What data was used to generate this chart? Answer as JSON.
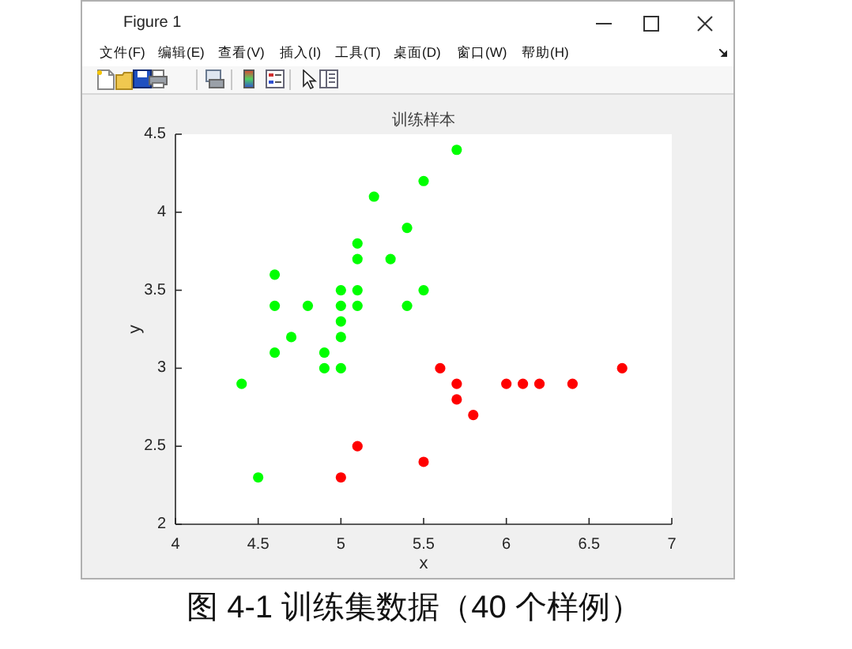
{
  "chart_data": {
    "type": "scatter",
    "title": "训练样本",
    "xlabel": "x",
    "ylabel": "y",
    "annotations": [
      "Figure 1",
      "文件(F)",
      "编辑(E)",
      "查看(V)",
      "插入(I)",
      "工具(T)",
      "桌面(D)",
      "窗口(W)",
      "帮助(H)",
      "图 4-1 训练集数据（40 个样例）"
    ],
    "xlim": [
      4,
      7
    ],
    "xticks": [
      4,
      4.5,
      5,
      5.5,
      6,
      6.5,
      7
    ],
    "ylim": [
      2,
      4.5
    ],
    "yticks": [
      2,
      2.5,
      3,
      3.5,
      4,
      4.5
    ],
    "marker": "circle",
    "series": [
      {
        "color": "#00ff00",
        "x": [
          4.4,
          4.5,
          4.6,
          4.6,
          4.6,
          4.7,
          4.8,
          4.9,
          4.9,
          5.0,
          5.0,
          5.0,
          5.0,
          5.0,
          5.1,
          5.1,
          5.1,
          5.1,
          5.2,
          5.3,
          5.4,
          5.4,
          5.5,
          5.5,
          5.7
        ],
        "values": [
          2.9,
          2.3,
          3.1,
          3.4,
          3.6,
          3.2,
          3.4,
          3.0,
          3.1,
          3.0,
          3.2,
          3.3,
          3.4,
          3.5,
          3.4,
          3.5,
          3.7,
          3.8,
          4.1,
          3.7,
          3.4,
          3.9,
          3.5,
          4.2,
          4.4
        ]
      },
      {
        "color": "#ff0000",
        "x": [
          5.0,
          5.1,
          5.5,
          5.6,
          5.7,
          5.7,
          5.8,
          6.0,
          6.1,
          6.2,
          6.4,
          6.7
        ],
        "values": [
          2.3,
          2.5,
          2.4,
          3.0,
          2.9,
          2.8,
          2.7,
          2.9,
          2.9,
          2.9,
          2.9,
          3.0
        ]
      }
    ]
  }
}
